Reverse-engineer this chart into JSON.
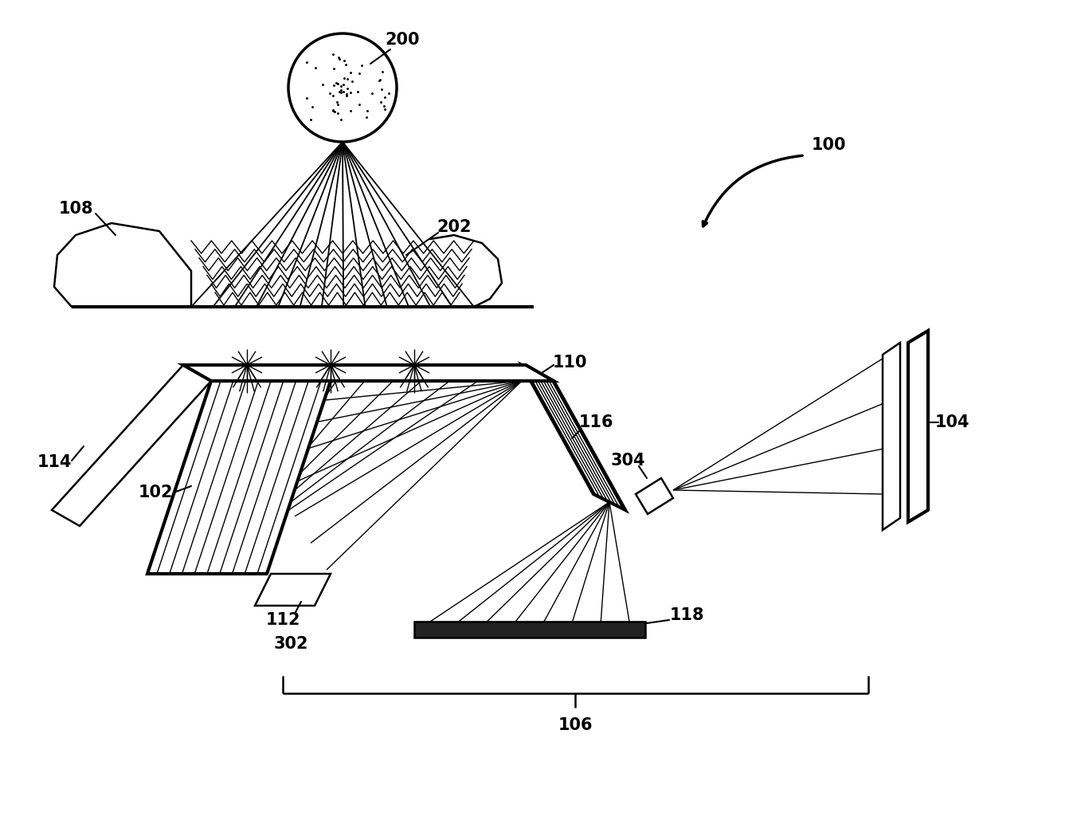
{
  "bg_color": "#ffffff",
  "line_color": "#000000",
  "fig_width": 13.52,
  "fig_height": 10.39,
  "dpi": 100
}
